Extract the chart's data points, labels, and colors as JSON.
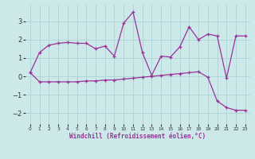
{
  "xlabel": "Windchill (Refroidissement éolien,°C)",
  "background_color": "#cce8e8",
  "grid_color": "#aad4d4",
  "line_color": "#993399",
  "ylim": [
    -2.6,
    3.9
  ],
  "xlim": [
    -0.5,
    23.5
  ],
  "yticks": [
    -2,
    -1,
    0,
    1,
    2,
    3
  ],
  "xticks": [
    0,
    1,
    2,
    3,
    4,
    5,
    6,
    7,
    8,
    9,
    10,
    11,
    12,
    13,
    14,
    15,
    16,
    17,
    18,
    19,
    20,
    21,
    22,
    23
  ],
  "series1": [
    0.2,
    1.3,
    1.7,
    1.8,
    1.85,
    1.8,
    1.8,
    1.5,
    1.65,
    1.1,
    2.9,
    3.5,
    1.3,
    0.05,
    1.1,
    1.05,
    1.6,
    2.7,
    2.0,
    2.3,
    2.2,
    -0.1,
    2.2,
    2.2
  ],
  "series2": [
    0.2,
    -0.3,
    -0.3,
    -0.3,
    -0.3,
    -0.3,
    -0.25,
    -0.25,
    -0.2,
    -0.2,
    -0.15,
    -0.1,
    -0.05,
    0.0,
    0.05,
    0.1,
    0.15,
    0.2,
    0.25,
    -0.05,
    -1.35,
    -1.7,
    -1.85,
    -1.85
  ]
}
